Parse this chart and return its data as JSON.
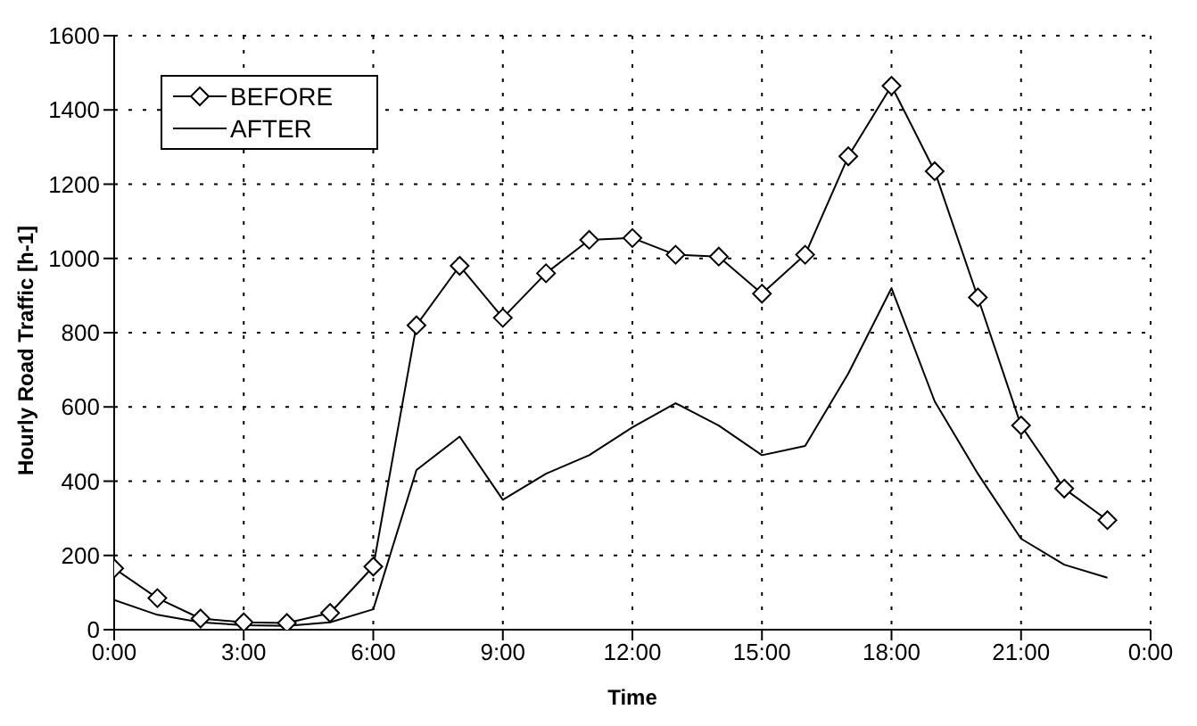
{
  "chart_data": {
    "type": "line",
    "xlabel": "Time",
    "ylabel": "Hourly Road Traffic [h-1]",
    "x": [
      0,
      1,
      2,
      3,
      4,
      5,
      6,
      7,
      8,
      9,
      10,
      11,
      12,
      13,
      14,
      15,
      16,
      17,
      18,
      19,
      20,
      21,
      22,
      23
    ],
    "series": [
      {
        "name": "BEFORE",
        "color": "#000000",
        "marker": "diamond",
        "values": [
          165,
          85,
          30,
          20,
          18,
          45,
          170,
          820,
          980,
          840,
          960,
          1050,
          1055,
          1010,
          1005,
          905,
          1010,
          1275,
          1465,
          1235,
          895,
          550,
          380,
          295
        ]
      },
      {
        "name": "AFTER",
        "color": "#000000",
        "marker": "none",
        "values": [
          80,
          40,
          20,
          12,
          10,
          20,
          55,
          430,
          520,
          350,
          420,
          470,
          545,
          610,
          550,
          470,
          495,
          690,
          920,
          615,
          420,
          245,
          175,
          140
        ]
      }
    ],
    "xlim": [
      0,
      24
    ],
    "xticks": [
      {
        "value": 0,
        "label": "0:00"
      },
      {
        "value": 3,
        "label": "3:00"
      },
      {
        "value": 6,
        "label": "6:00"
      },
      {
        "value": 9,
        "label": "9:00"
      },
      {
        "value": 12,
        "label": "12:00"
      },
      {
        "value": 15,
        "label": "15:00"
      },
      {
        "value": 18,
        "label": "18:00"
      },
      {
        "value": 21,
        "label": "21:00"
      },
      {
        "value": 24,
        "label": "0:00"
      }
    ],
    "ylim": [
      0,
      1600
    ],
    "yticks": [
      0,
      200,
      400,
      600,
      800,
      1000,
      1200,
      1400,
      1600
    ],
    "grid": true,
    "legend": "top left",
    "line_style": "solid"
  }
}
